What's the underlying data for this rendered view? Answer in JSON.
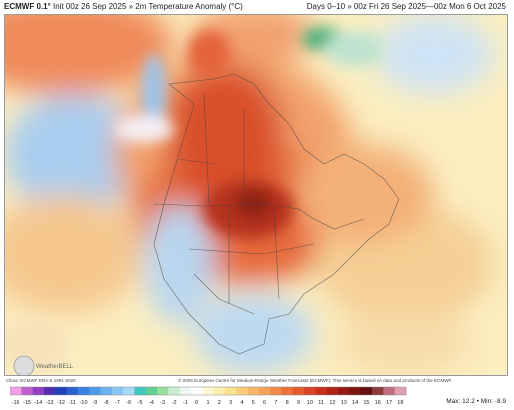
{
  "header": {
    "model": "ECMWF 0.1°",
    "description": "Init 00z 26 Sep 2025 » 2m Temperature Anomaly (°C)",
    "period": "Days 0–10 » 00z Fri 26 Sep 2025—00z Mon 6 Oct 2025"
  },
  "footer": {
    "climatology": "Clima: ECMWF ERA-5 1991-2020",
    "copyright": "© 2025 European Centre for Medium-Range Weather Forecasts (ECMWF). This service is based on data and products of the ECMWF.",
    "watermark": "WeatherBELL",
    "max_min": "Max: 12.2 • Min: -8.9"
  },
  "colorbar": {
    "labels": [
      -16,
      -15,
      -14,
      -13,
      -12,
      -11,
      -10,
      -9,
      -8,
      -7,
      -6,
      -5,
      -4,
      -3,
      -2,
      -1,
      0,
      1,
      2,
      3,
      4,
      5,
      6,
      7,
      8,
      9,
      10,
      11,
      12,
      13,
      14,
      15,
      16,
      17,
      18
    ]
  }
}
